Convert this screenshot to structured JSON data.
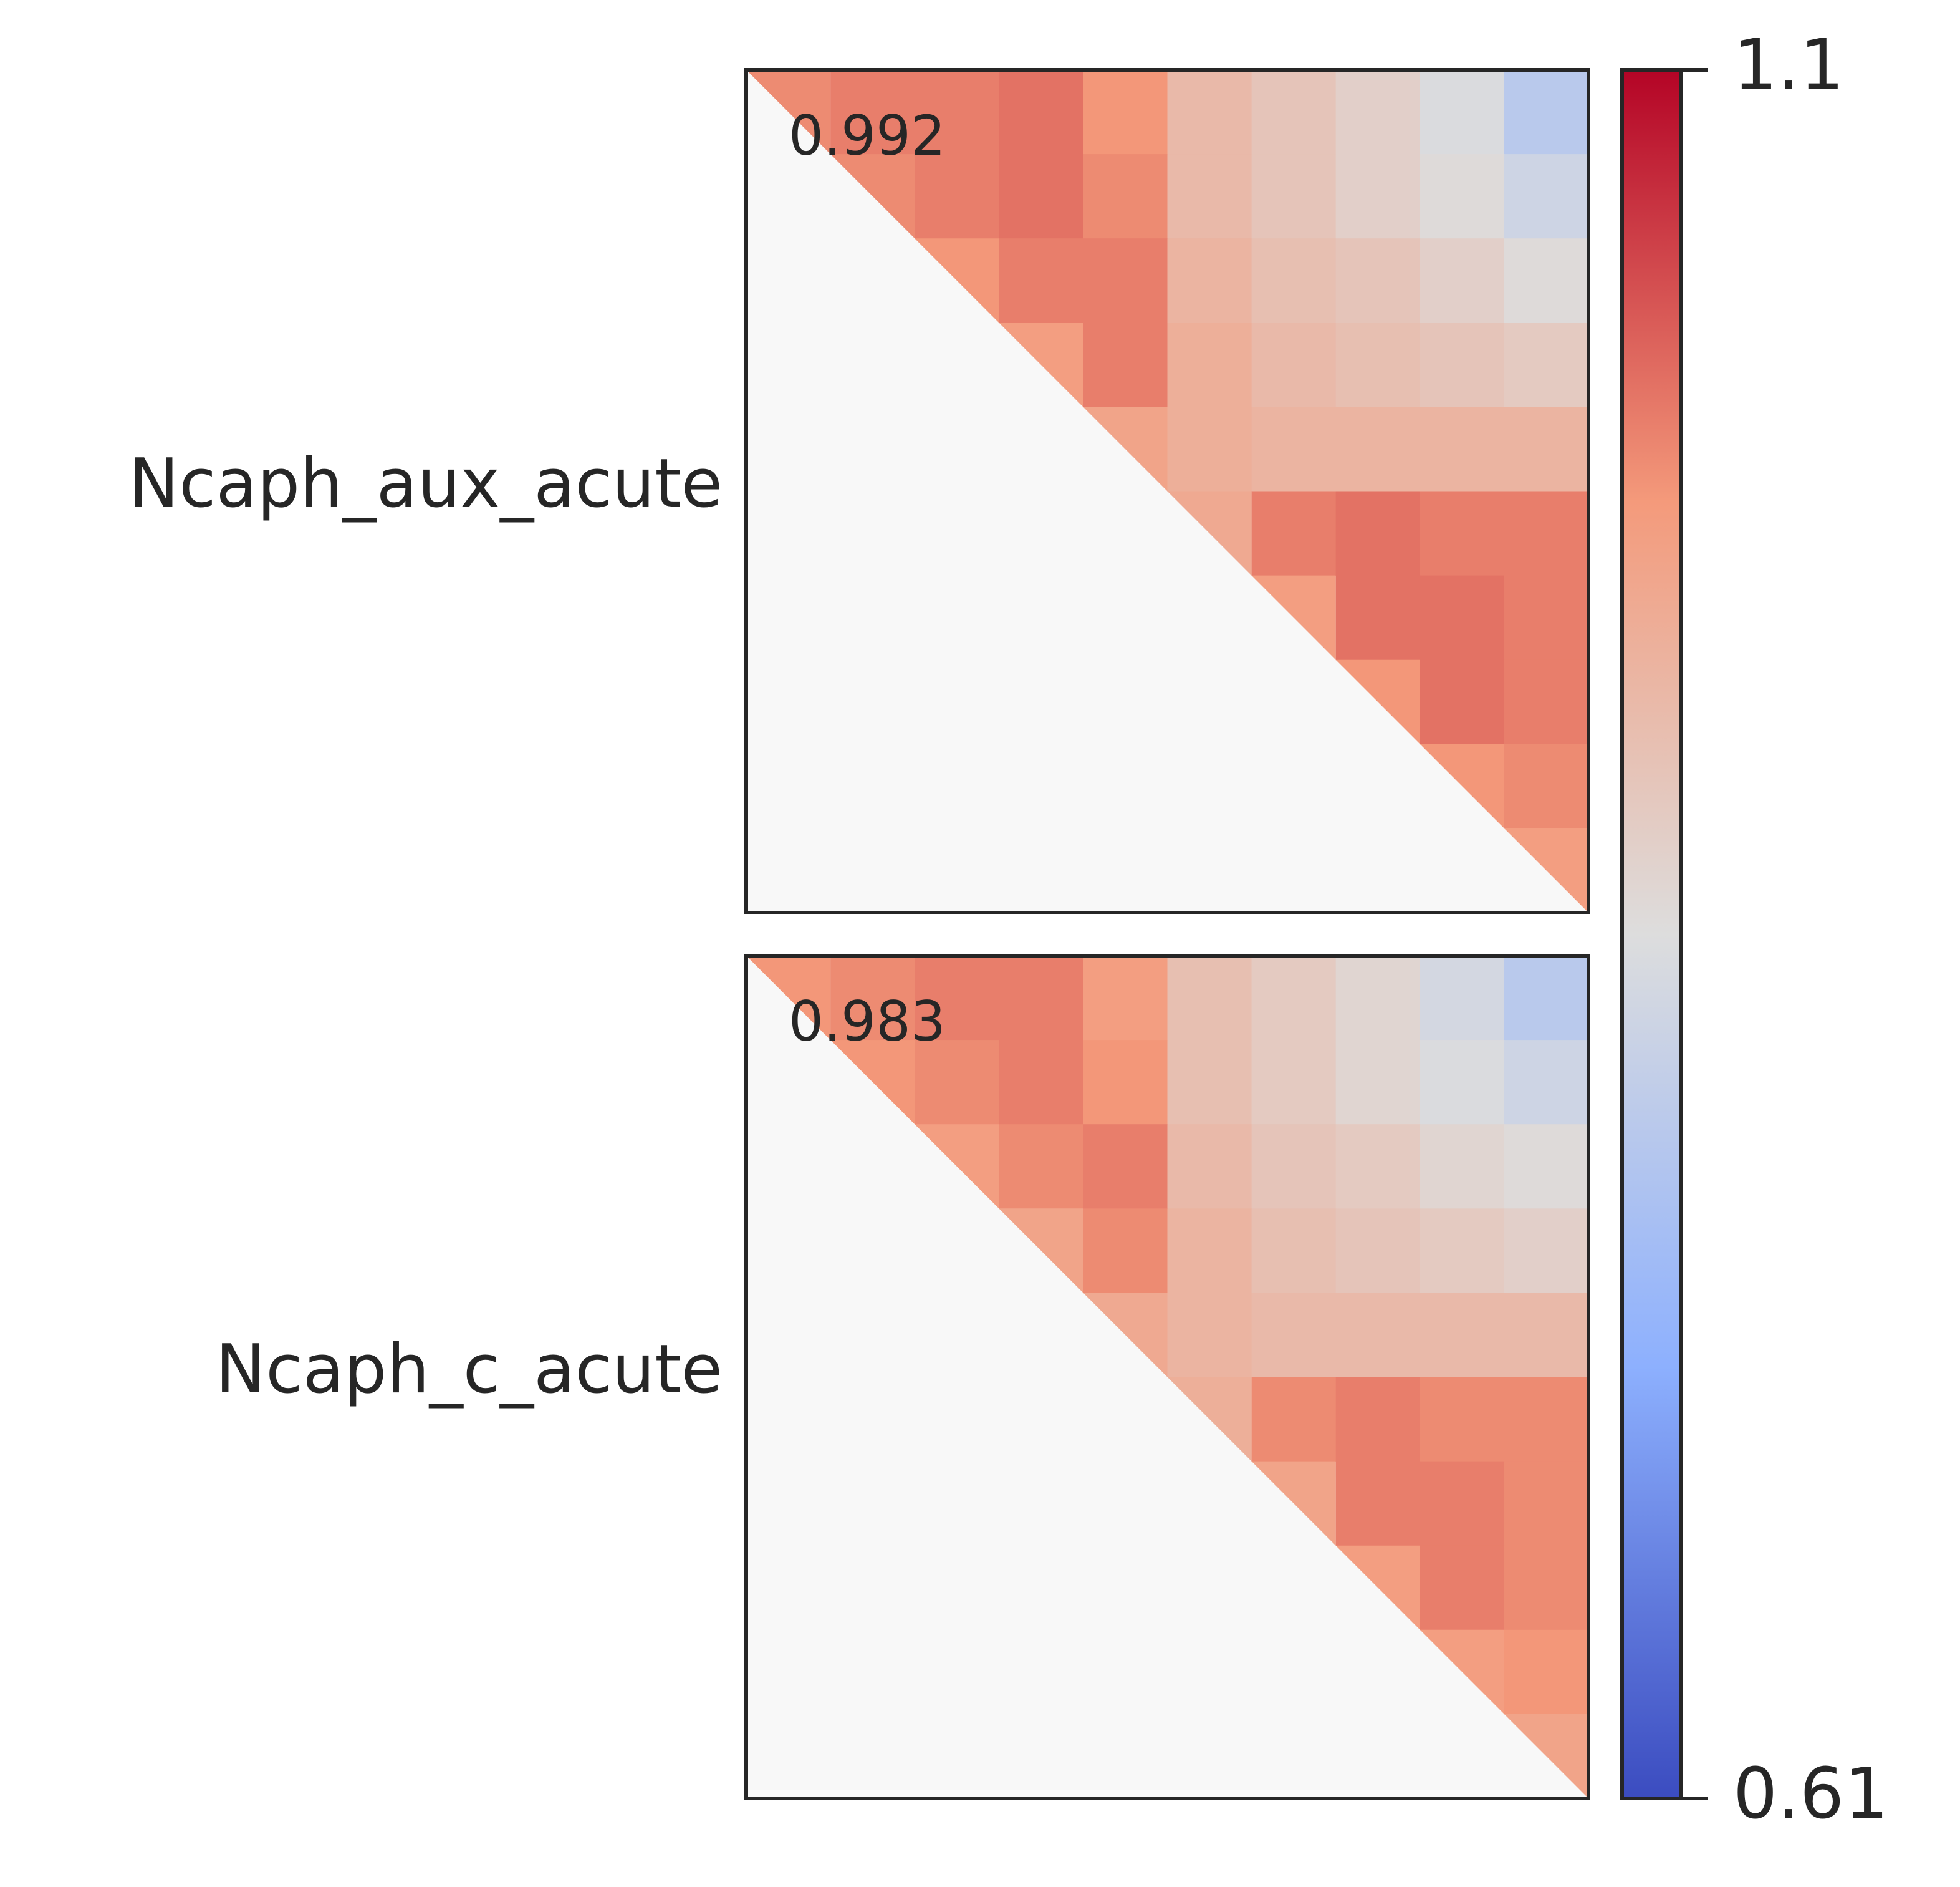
{
  "chart_data": {
    "type": "heatmap",
    "colormap": [
      "#3b4cc0",
      "#8db0fe",
      "#dddddd",
      "#f49a7b",
      "#b40426"
    ],
    "clim": [
      0.61,
      1.1
    ],
    "cticks": [
      0.61,
      1.1
    ],
    "panels": [
      {
        "label": "Ncaph_aux_acute",
        "annotation": 0.992,
        "values": [
          [
            0.99,
            1.0,
            1.0,
            1.01,
            0.98,
            0.92,
            0.9,
            0.88,
            0.85,
            0.8
          ],
          [
            null,
            0.99,
            1.0,
            1.01,
            0.99,
            0.92,
            0.9,
            0.88,
            0.86,
            0.83
          ],
          [
            null,
            null,
            0.98,
            1.0,
            1.0,
            0.93,
            0.91,
            0.9,
            0.88,
            0.86
          ],
          [
            null,
            null,
            null,
            0.97,
            1.0,
            0.94,
            0.92,
            0.91,
            0.9,
            0.89
          ],
          [
            null,
            null,
            null,
            null,
            0.96,
            0.94,
            0.93,
            0.93,
            0.93,
            0.93
          ],
          [
            null,
            null,
            null,
            null,
            null,
            0.95,
            1.0,
            1.01,
            1.0,
            1.0
          ],
          [
            null,
            null,
            null,
            null,
            null,
            null,
            0.97,
            1.01,
            1.01,
            1.0
          ],
          [
            null,
            null,
            null,
            null,
            null,
            null,
            null,
            0.98,
            1.01,
            1.0
          ],
          [
            null,
            null,
            null,
            null,
            null,
            null,
            null,
            null,
            0.98,
            0.99
          ],
          [
            null,
            null,
            null,
            null,
            null,
            null,
            null,
            null,
            null,
            0.97
          ]
        ]
      },
      {
        "label": "Ncaph_c_acute",
        "annotation": 0.983,
        "values": [
          [
            0.98,
            0.99,
            1.0,
            1.0,
            0.97,
            0.91,
            0.89,
            0.87,
            0.84,
            0.8
          ],
          [
            null,
            0.98,
            0.99,
            1.0,
            0.98,
            0.91,
            0.89,
            0.87,
            0.85,
            0.83
          ],
          [
            null,
            null,
            0.97,
            0.99,
            1.0,
            0.92,
            0.9,
            0.89,
            0.87,
            0.86
          ],
          [
            null,
            null,
            null,
            0.96,
            0.99,
            0.93,
            0.91,
            0.9,
            0.89,
            0.88
          ],
          [
            null,
            null,
            null,
            null,
            0.95,
            0.93,
            0.92,
            0.92,
            0.92,
            0.92
          ],
          [
            null,
            null,
            null,
            null,
            null,
            0.94,
            0.99,
            1.0,
            0.99,
            0.99
          ],
          [
            null,
            null,
            null,
            null,
            null,
            null,
            0.96,
            1.0,
            1.0,
            0.99
          ],
          [
            null,
            null,
            null,
            null,
            null,
            null,
            null,
            0.97,
            1.0,
            0.99
          ],
          [
            null,
            null,
            null,
            null,
            null,
            null,
            null,
            null,
            0.97,
            0.98
          ],
          [
            null,
            null,
            null,
            null,
            null,
            null,
            null,
            null,
            null,
            0.96
          ]
        ]
      }
    ]
  }
}
